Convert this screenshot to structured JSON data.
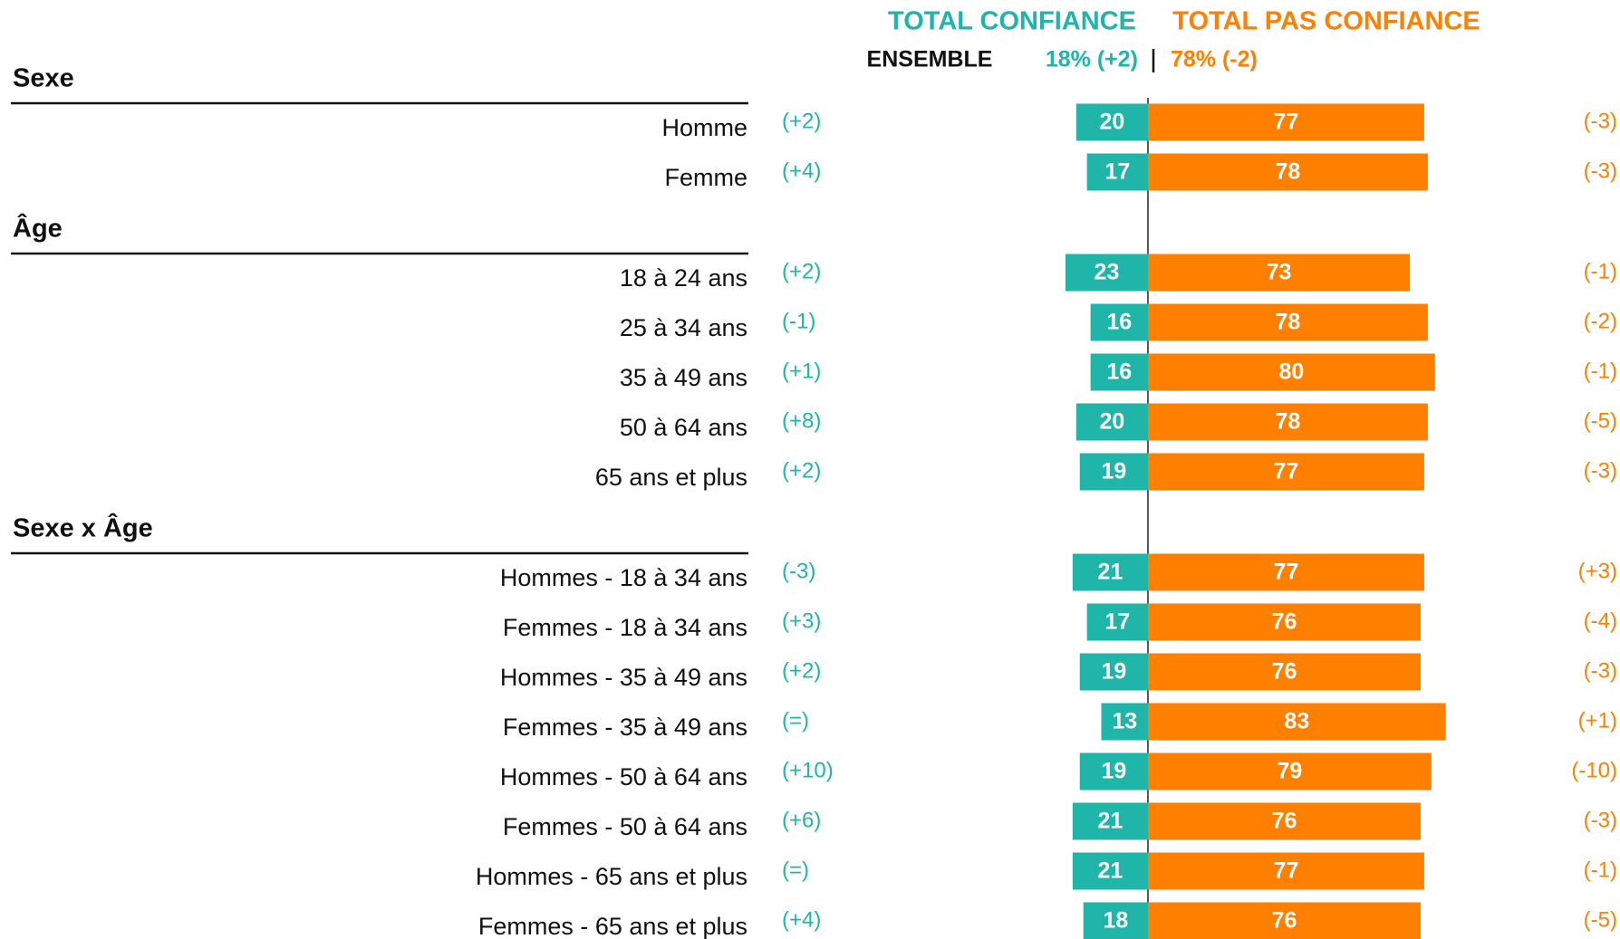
{
  "chart_data": {
    "type": "diverging_bar",
    "series": [
      {
        "name": "TOTAL CONFIANCE",
        "color": "#1fb5a9",
        "values": [
          20,
          17,
          23,
          16,
          16,
          20,
          19,
          21,
          17,
          19,
          13,
          19,
          21,
          21,
          18
        ],
        "changes": [
          "(+2)",
          "(+4)",
          "(+2)",
          "(-1)",
          "(+1)",
          "(+8)",
          "(+2)",
          "(-3)",
          "(+3)",
          "(+2)",
          "(=)",
          "(+10)",
          "(+6)",
          "(=)",
          "(+4)"
        ]
      },
      {
        "name": "TOTAL PAS CONFIANCE",
        "color": "#ff7f00",
        "values": [
          77,
          78,
          73,
          78,
          80,
          78,
          77,
          77,
          76,
          76,
          83,
          79,
          76,
          77,
          76
        ],
        "changes": [
          "(-3)",
          "(-3)",
          "(-1)",
          "(-2)",
          "(-1)",
          "(-5)",
          "(-3)",
          "(+3)",
          "(-4)",
          "(-3)",
          "(+1)",
          "(-10)",
          "(-3)",
          "(-1)",
          "(-5)"
        ]
      }
    ],
    "groups": [
      {
        "name": "Sexe",
        "categories": [
          "Homme",
          "Femme"
        ]
      },
      {
        "name": "Âge",
        "categories": [
          "18 à 24 ans",
          "25 à 34 ans",
          "35 à 49 ans",
          "50 à 64 ans",
          "65 ans et plus"
        ]
      },
      {
        "name": "Sexe x Âge",
        "categories": [
          "Hommes - 18 à 34 ans",
          "Femmes - 18 à 34 ans",
          "Hommes - 35 à 49 ans",
          "Femmes - 35 à 49 ans",
          "Hommes - 50 à 64 ans",
          "Femmes - 50 à 64 ans",
          "Hommes - 65 ans et plus",
          "Femmes - 65 ans et plus"
        ]
      }
    ],
    "overall": {
      "label": "ENSEMBLE",
      "labels": [
        "18% (+2)",
        "78% (-2)"
      ]
    }
  }
}
